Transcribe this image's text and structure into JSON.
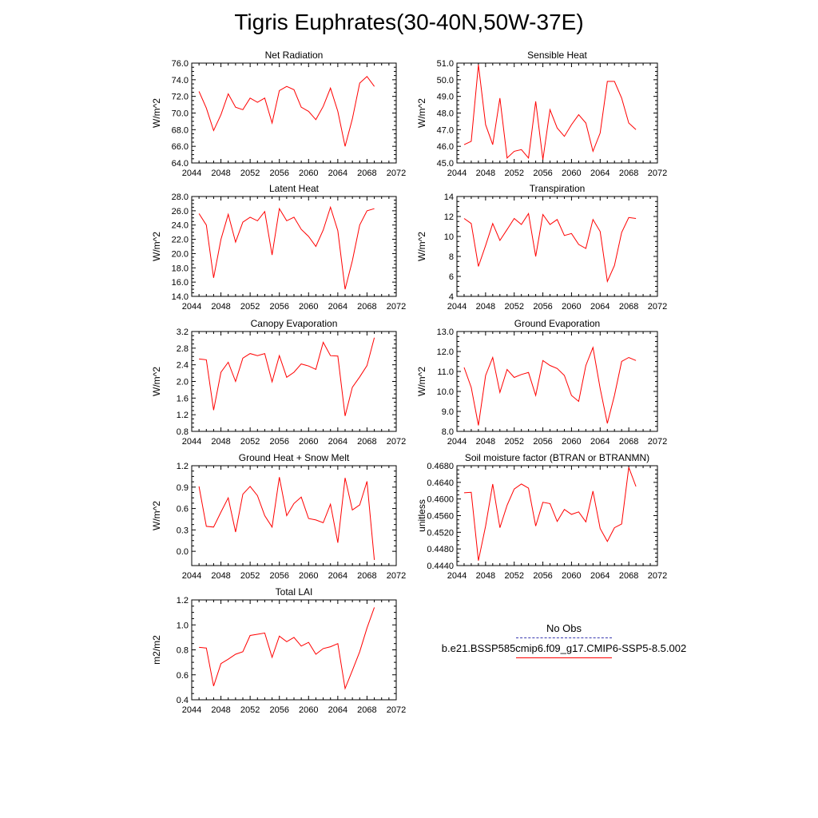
{
  "title": "Tigris Euphrates(30-40N,50W-37E)",
  "legend": {
    "obs_label": "No Obs",
    "obs_color": "#3b3bb0",
    "model_label": "b.e21.BSSP585cmip6.f09_g17.CMIP6-SSP5-8.5.002",
    "model_color": "#ff0000"
  },
  "chart_data": [
    {
      "type": "line",
      "title": "Net Radiation",
      "ylabel": "W/m^2",
      "xlim": [
        2044,
        2072
      ],
      "ylim": [
        64.0,
        76.0
      ],
      "xticks": [
        2044,
        2048,
        2052,
        2056,
        2060,
        2064,
        2068,
        2072
      ],
      "yticks": [
        "64.0",
        "66.0",
        "68.0",
        "70.0",
        "72.0",
        "74.0",
        "76.0"
      ],
      "series": [
        {
          "color": "#ff0000",
          "x": [
            2045,
            2046,
            2047,
            2048,
            2049,
            2050,
            2051,
            2052,
            2053,
            2054,
            2055,
            2056,
            2057,
            2058,
            2059,
            2060,
            2061,
            2062,
            2063,
            2064,
            2065,
            2066,
            2067,
            2068,
            2069
          ],
          "y": [
            72.6,
            70.6,
            67.9,
            69.8,
            72.3,
            70.7,
            70.4,
            71.8,
            71.3,
            71.8,
            68.8,
            72.7,
            73.2,
            72.8,
            70.7,
            70.2,
            69.2,
            70.8,
            73.0,
            70.2,
            66.0,
            69.3,
            73.6,
            74.4,
            73.2
          ]
        }
      ]
    },
    {
      "type": "line",
      "title": "Sensible Heat",
      "ylabel": "W/m^2",
      "xlim": [
        2044,
        2072
      ],
      "ylim": [
        45.0,
        51.0
      ],
      "xticks": [
        2044,
        2048,
        2052,
        2056,
        2060,
        2064,
        2068,
        2072
      ],
      "yticks": [
        "45.0",
        "46.0",
        "47.0",
        "48.0",
        "49.0",
        "50.0",
        "51.0"
      ],
      "series": [
        {
          "color": "#ff0000",
          "x": [
            2045,
            2046,
            2047,
            2048,
            2049,
            2050,
            2051,
            2052,
            2053,
            2054,
            2055,
            2056,
            2057,
            2058,
            2059,
            2060,
            2061,
            2062,
            2063,
            2064,
            2065,
            2066,
            2067,
            2068,
            2069
          ],
          "y": [
            46.1,
            46.3,
            50.9,
            47.3,
            46.1,
            48.9,
            45.3,
            45.7,
            45.8,
            45.3,
            48.7,
            45.2,
            48.2,
            47.1,
            46.6,
            47.3,
            47.9,
            47.4,
            45.7,
            46.8,
            49.9,
            49.9,
            48.9,
            47.4,
            47.0
          ]
        }
      ]
    },
    {
      "type": "line",
      "title": "Latent Heat",
      "ylabel": "W/m^2",
      "xlim": [
        2044,
        2072
      ],
      "ylim": [
        14.0,
        28.0
      ],
      "xticks": [
        2044,
        2048,
        2052,
        2056,
        2060,
        2064,
        2068,
        2072
      ],
      "yticks": [
        "14.0",
        "16.0",
        "18.0",
        "20.0",
        "22.0",
        "24.0",
        "26.0",
        "28.0"
      ],
      "series": [
        {
          "color": "#ff0000",
          "x": [
            2045,
            2046,
            2047,
            2048,
            2049,
            2050,
            2051,
            2052,
            2053,
            2054,
            2055,
            2056,
            2057,
            2058,
            2059,
            2060,
            2061,
            2062,
            2063,
            2064,
            2065,
            2066,
            2067,
            2068,
            2069
          ],
          "y": [
            25.6,
            24.0,
            16.6,
            22.0,
            25.5,
            21.6,
            24.4,
            25.1,
            24.6,
            25.9,
            19.8,
            26.3,
            24.6,
            25.1,
            23.4,
            22.4,
            21.0,
            23.3,
            26.5,
            23.2,
            15.0,
            19.0,
            24.0,
            26.0,
            26.3
          ]
        }
      ]
    },
    {
      "type": "line",
      "title": "Transpiration",
      "ylabel": "W/m^2",
      "xlim": [
        2044,
        2072
      ],
      "ylim": [
        4,
        14
      ],
      "xticks": [
        2044,
        2048,
        2052,
        2056,
        2060,
        2064,
        2068,
        2072
      ],
      "yticks": [
        "4",
        "6",
        "8",
        "10",
        "12",
        "14"
      ],
      "series": [
        {
          "color": "#ff0000",
          "x": [
            2045,
            2046,
            2047,
            2048,
            2049,
            2050,
            2051,
            2052,
            2053,
            2054,
            2055,
            2056,
            2057,
            2058,
            2059,
            2060,
            2061,
            2062,
            2063,
            2064,
            2065,
            2066,
            2067,
            2068,
            2069
          ],
          "y": [
            11.8,
            11.3,
            7.0,
            9.1,
            11.3,
            9.6,
            10.7,
            11.8,
            11.2,
            12.3,
            8.0,
            12.2,
            11.2,
            11.7,
            10.1,
            10.3,
            9.2,
            8.8,
            11.7,
            10.5,
            5.5,
            7.1,
            10.4,
            11.9,
            11.8
          ]
        }
      ]
    },
    {
      "type": "line",
      "title": "Canopy Evaporation",
      "ylabel": "W/m^2",
      "xlim": [
        2044,
        2072
      ],
      "ylim": [
        0.8,
        3.2
      ],
      "xticks": [
        2044,
        2048,
        2052,
        2056,
        2060,
        2064,
        2068,
        2072
      ],
      "yticks": [
        "0.8",
        "1.2",
        "1.6",
        "2.0",
        "2.4",
        "2.8",
        "3.2"
      ],
      "series": [
        {
          "color": "#ff0000",
          "x": [
            2045,
            2046,
            2047,
            2048,
            2049,
            2050,
            2051,
            2052,
            2053,
            2054,
            2055,
            2056,
            2057,
            2058,
            2059,
            2060,
            2061,
            2062,
            2063,
            2064,
            2065,
            2066,
            2067,
            2068,
            2069
          ],
          "y": [
            2.54,
            2.52,
            1.31,
            2.22,
            2.46,
            2.0,
            2.56,
            2.67,
            2.62,
            2.67,
            1.99,
            2.62,
            2.1,
            2.22,
            2.42,
            2.37,
            2.29,
            2.94,
            2.62,
            2.61,
            1.17,
            1.86,
            2.11,
            2.38,
            3.05
          ]
        }
      ]
    },
    {
      "type": "line",
      "title": "Ground Evaporation",
      "ylabel": "W/m^2",
      "xlim": [
        2044,
        2072
      ],
      "ylim": [
        8.0,
        13.0
      ],
      "xticks": [
        2044,
        2048,
        2052,
        2056,
        2060,
        2064,
        2068,
        2072
      ],
      "yticks": [
        "8.0",
        "9.0",
        "10.0",
        "11.0",
        "12.0",
        "13.0"
      ],
      "series": [
        {
          "color": "#ff0000",
          "x": [
            2045,
            2046,
            2047,
            2048,
            2049,
            2050,
            2051,
            2052,
            2053,
            2054,
            2055,
            2056,
            2057,
            2058,
            2059,
            2060,
            2061,
            2062,
            2063,
            2064,
            2065,
            2066,
            2067,
            2068,
            2069
          ],
          "y": [
            11.2,
            10.2,
            8.3,
            10.8,
            11.7,
            9.95,
            11.1,
            10.7,
            10.85,
            10.95,
            9.8,
            11.55,
            11.3,
            11.15,
            10.8,
            9.8,
            9.5,
            11.3,
            12.2,
            10.15,
            8.4,
            9.8,
            11.5,
            11.7,
            11.55
          ]
        }
      ]
    },
    {
      "type": "line",
      "title": "Ground Heat + Snow Melt",
      "ylabel": "W/m^2",
      "xlim": [
        2044,
        2072
      ],
      "ylim": [
        -0.2,
        1.2
      ],
      "xticks": [
        2044,
        2048,
        2052,
        2056,
        2060,
        2064,
        2068,
        2072
      ],
      "yticks": [
        "0.0",
        "0.3",
        "0.6",
        "0.9",
        "1.2"
      ],
      "ytick_values": [
        0.0,
        0.3,
        0.6,
        0.9,
        1.2
      ],
      "series": [
        {
          "color": "#ff0000",
          "x": [
            2045,
            2046,
            2047,
            2048,
            2049,
            2050,
            2051,
            2052,
            2053,
            2054,
            2055,
            2056,
            2057,
            2058,
            2059,
            2060,
            2061,
            2062,
            2063,
            2064,
            2065,
            2066,
            2067,
            2068,
            2069
          ],
          "y": [
            0.91,
            0.35,
            0.34,
            0.55,
            0.75,
            0.27,
            0.8,
            0.91,
            0.78,
            0.5,
            0.34,
            1.04,
            0.5,
            0.67,
            0.76,
            0.46,
            0.44,
            0.4,
            0.66,
            0.12,
            1.03,
            0.58,
            0.65,
            0.98,
            -0.12
          ]
        }
      ]
    },
    {
      "type": "line",
      "title": "Soil moisture factor (BTRAN or BTRANMN)",
      "ylabel": "unitless",
      "xlim": [
        2044,
        2072
      ],
      "ylim": [
        0.444,
        0.468
      ],
      "xticks": [
        2044,
        2048,
        2052,
        2056,
        2060,
        2064,
        2068,
        2072
      ],
      "yticks": [
        "0.4440",
        "0.4480",
        "0.4520",
        "0.4560",
        "0.4600",
        "0.4640",
        "0.4680"
      ],
      "series": [
        {
          "color": "#ff0000",
          "x": [
            2045,
            2046,
            2047,
            2048,
            2049,
            2050,
            2051,
            2052,
            2053,
            2054,
            2055,
            2056,
            2057,
            2058,
            2059,
            2060,
            2061,
            2062,
            2063,
            2064,
            2065,
            2066,
            2067,
            2068,
            2069
          ],
          "y": [
            0.4615,
            0.4616,
            0.4452,
            0.4535,
            0.4636,
            0.4531,
            0.4585,
            0.4624,
            0.4636,
            0.4626,
            0.4535,
            0.4592,
            0.4589,
            0.4546,
            0.4575,
            0.4563,
            0.4569,
            0.4545,
            0.4619,
            0.4529,
            0.4498,
            0.4531,
            0.454,
            0.4676,
            0.463
          ]
        }
      ]
    },
    {
      "type": "line",
      "title": "Total LAI",
      "ylabel": "m2/m2",
      "xlim": [
        2044,
        2072
      ],
      "ylim": [
        0.4,
        1.2
      ],
      "xticks": [
        2044,
        2048,
        2052,
        2056,
        2060,
        2064,
        2068,
        2072
      ],
      "yticks": [
        "0.4",
        "0.6",
        "0.8",
        "1.0",
        "1.2"
      ],
      "series": [
        {
          "color": "#ff0000",
          "x": [
            2045,
            2046,
            2047,
            2048,
            2049,
            2050,
            2051,
            2052,
            2053,
            2054,
            2055,
            2056,
            2057,
            2058,
            2059,
            2060,
            2061,
            2062,
            2063,
            2064,
            2065,
            2066,
            2067,
            2068,
            2069
          ],
          "y": [
            0.82,
            0.815,
            0.51,
            0.69,
            0.725,
            0.765,
            0.785,
            0.915,
            0.925,
            0.935,
            0.74,
            0.91,
            0.865,
            0.9,
            0.83,
            0.86,
            0.765,
            0.81,
            0.825,
            0.85,
            0.49,
            0.635,
            0.785,
            0.975,
            1.14
          ]
        }
      ]
    }
  ]
}
